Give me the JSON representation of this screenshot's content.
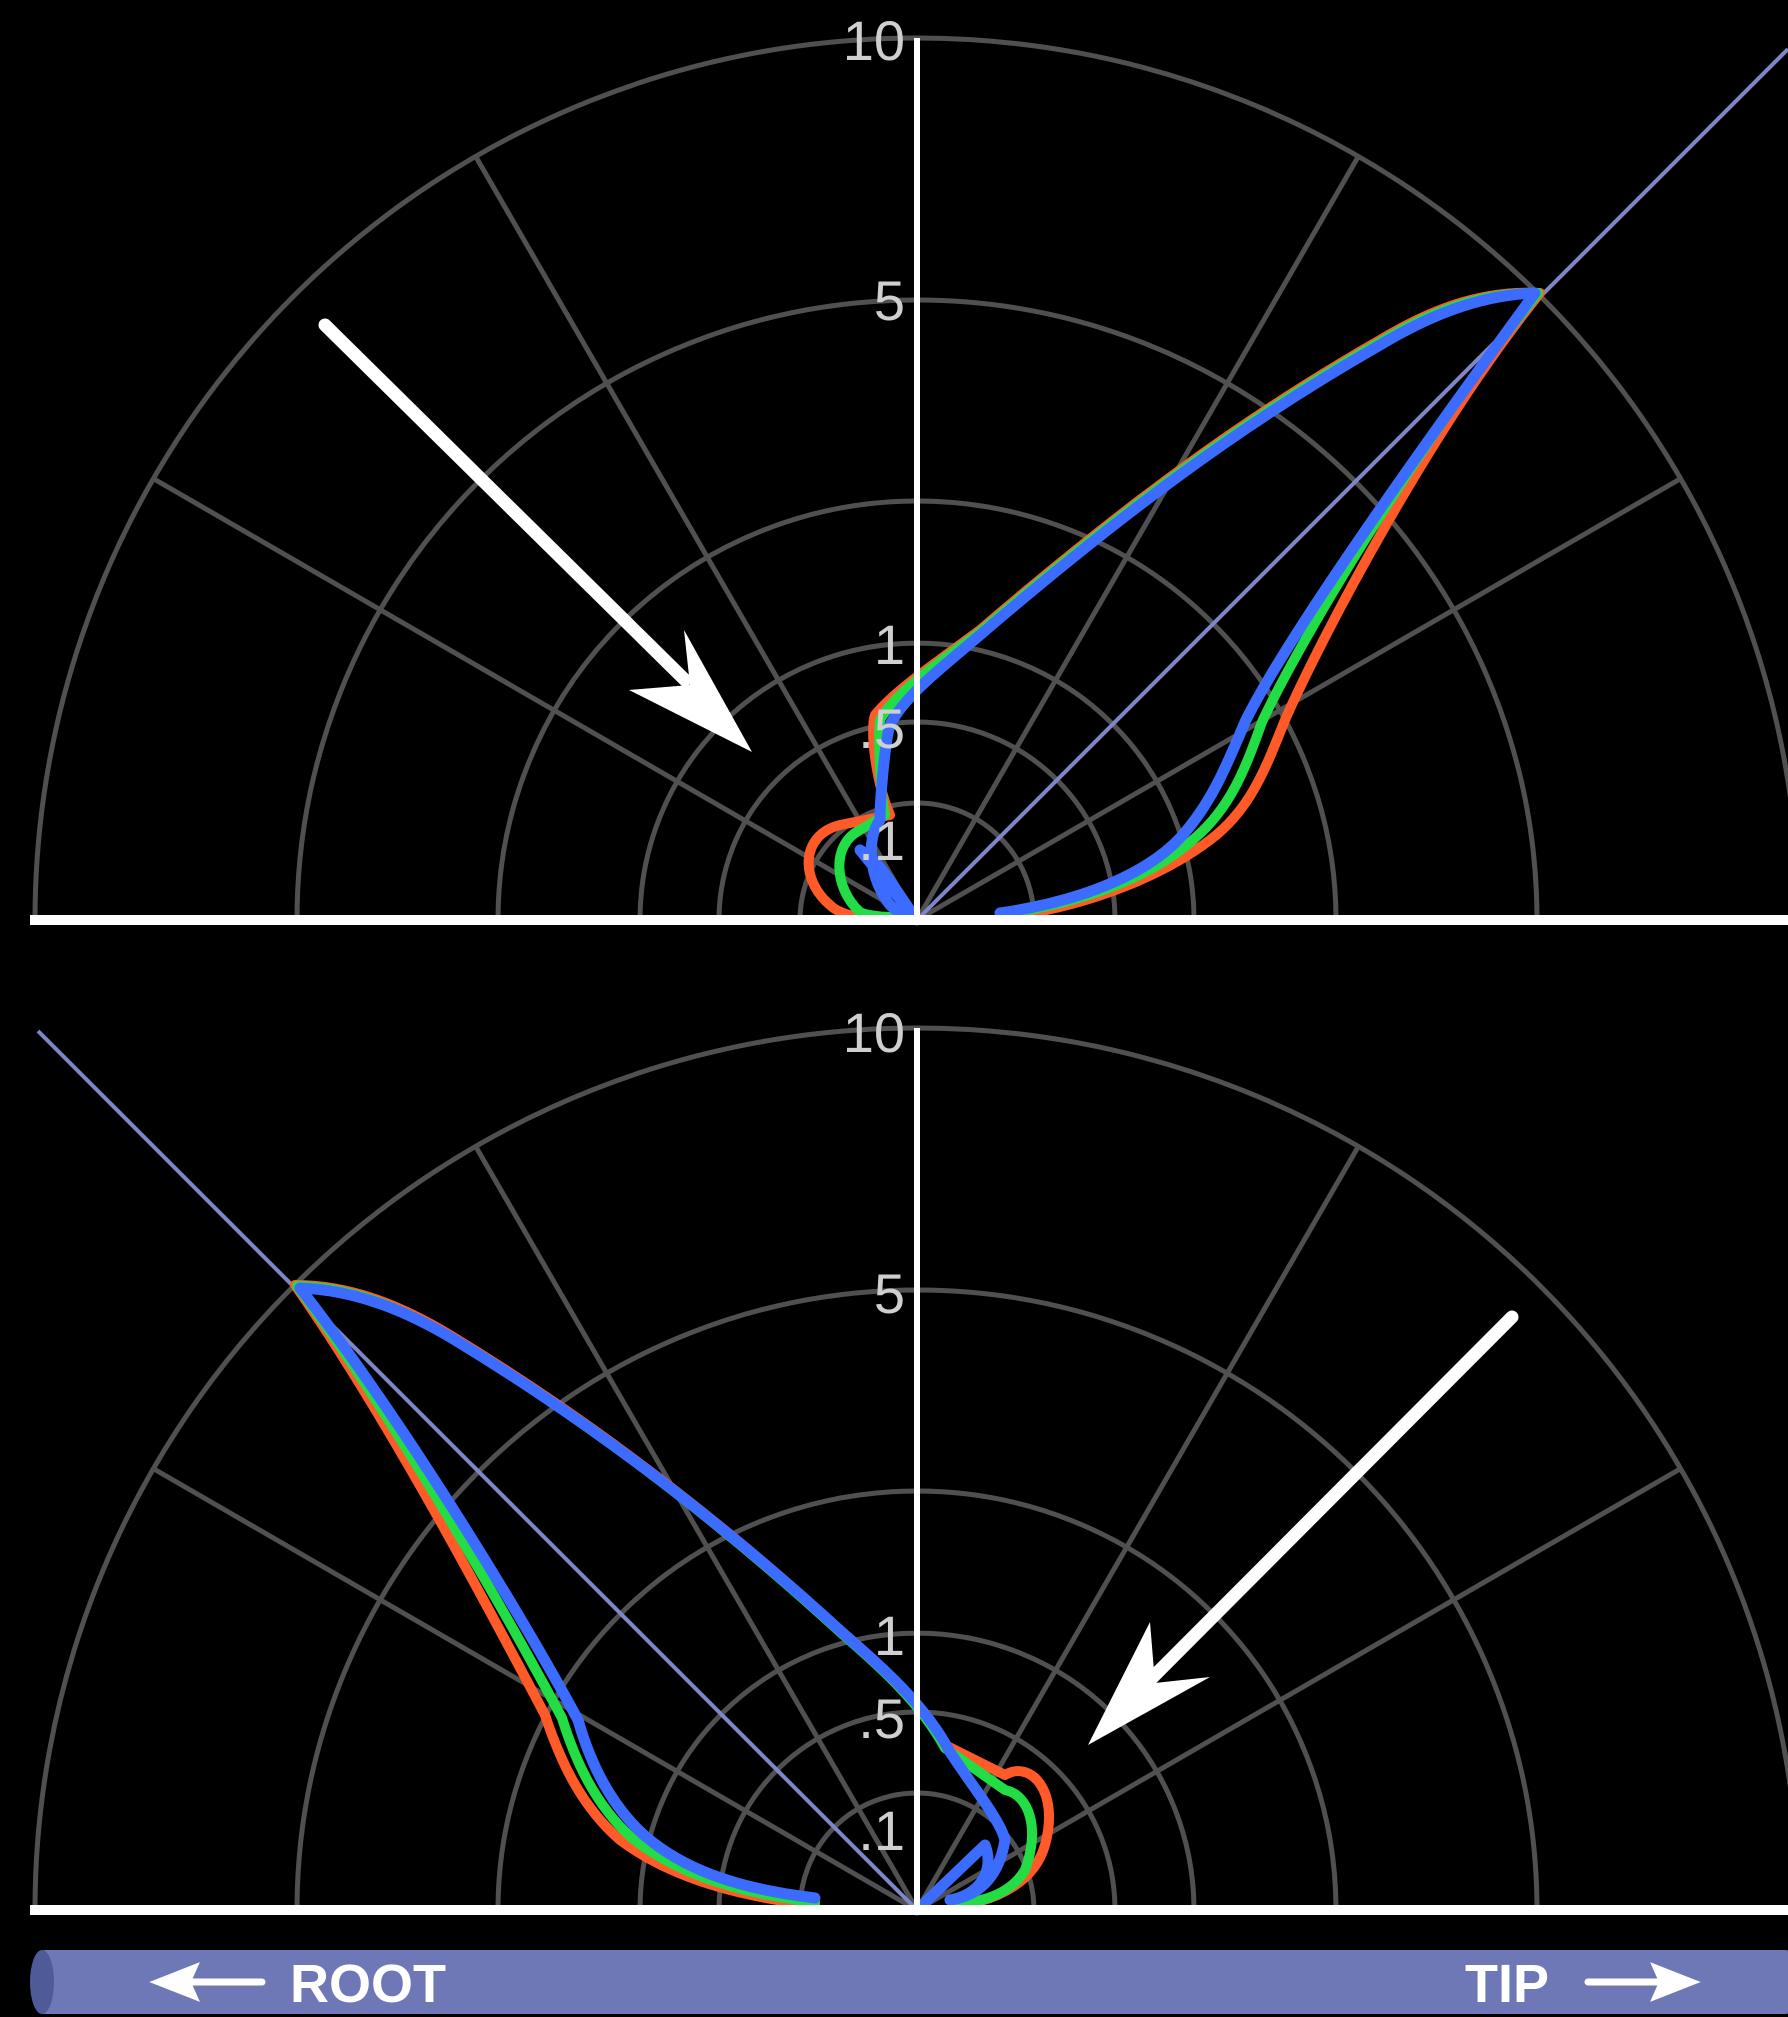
{
  "colors": {
    "background": "#000000",
    "grid": "#505050",
    "axis": "#ffffff",
    "beam_line": "#7f86c8",
    "arrow": "#ffffff",
    "bar_fill": "#6e78b6"
  },
  "labels": {
    "root": "ROOT",
    "tip": "TIP"
  },
  "polar_plots": [
    {
      "id": "top",
      "tick_labels": [
        "10",
        "5",
        "1",
        ".5",
        ".1"
      ],
      "beam_direction": "right-up",
      "arrow_direction": "down-right",
      "curve_colors": [
        "#ff5a28",
        "#22dd44",
        "#3b6cff"
      ]
    },
    {
      "id": "bottom",
      "tick_labels": [
        "10",
        "5",
        "1",
        ".5",
        ".1"
      ],
      "beam_direction": "left-up",
      "arrow_direction": "down-left",
      "curve_colors": [
        "#ff5a28",
        "#22dd44",
        "#3b6cff"
      ]
    }
  ]
}
